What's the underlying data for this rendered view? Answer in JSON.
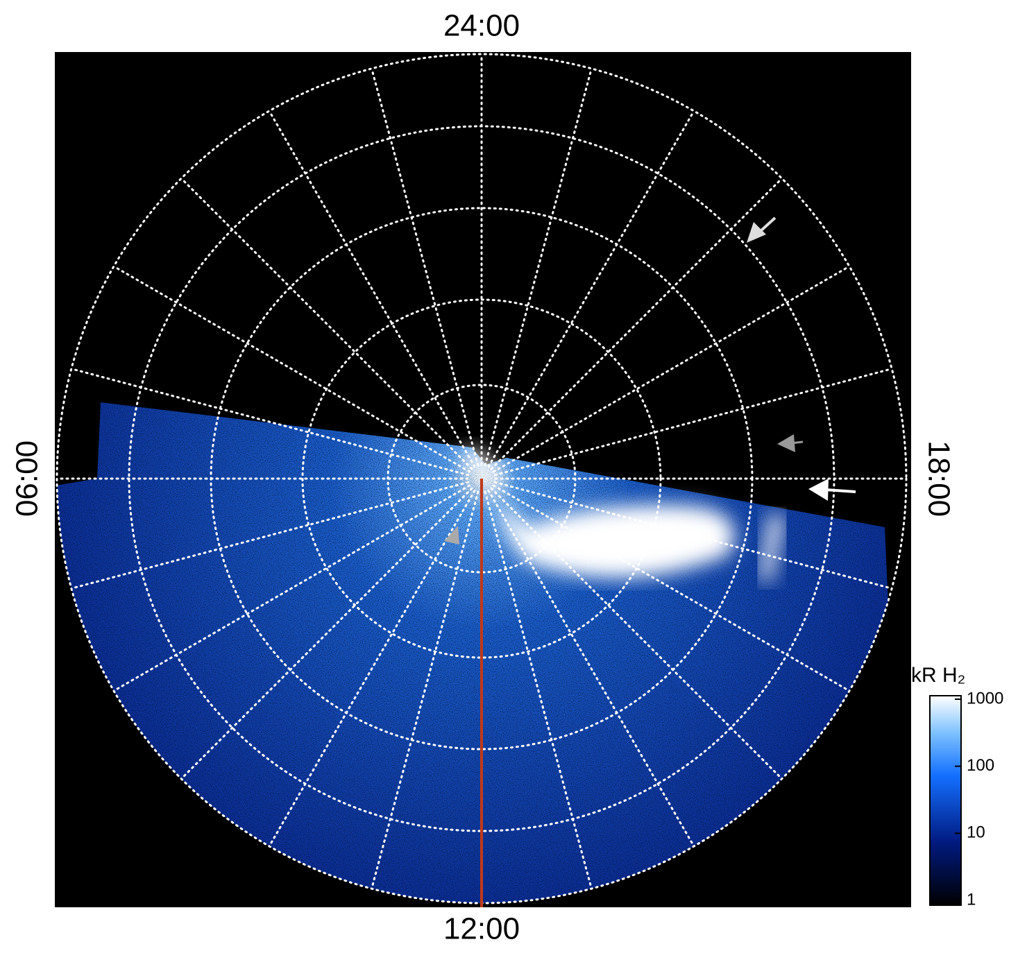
{
  "local_time_labels": {
    "top": "24:00",
    "bottom": "12:00",
    "left": "06:00",
    "right": "18:00"
  },
  "colorbar": {
    "label": "kR H₂",
    "scale": "log",
    "range": [
      1,
      1000
    ],
    "ticks": [
      1,
      10,
      100,
      1000
    ]
  }
}
